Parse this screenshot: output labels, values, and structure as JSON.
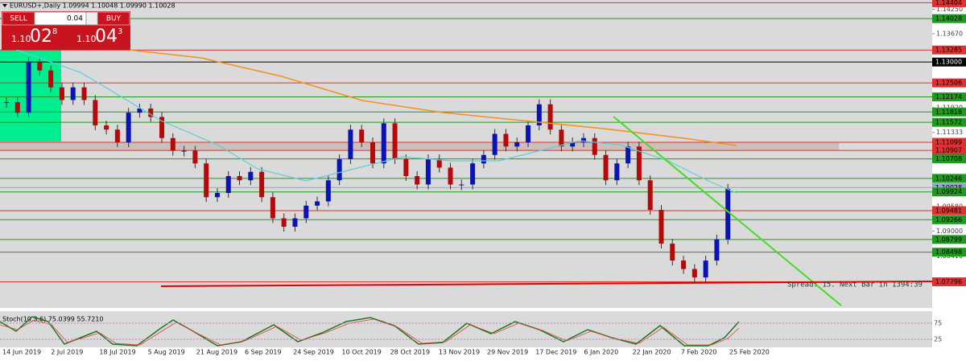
{
  "header": {
    "symbol_info": "EURUSD+,Daily 1.09994 1.10048 1.09990 1.10028"
  },
  "trade_panel": {
    "sell": "SELL",
    "lot": "0.04",
    "buy": "BUY",
    "sell_price": {
      "big": "1.10",
      "main": "02",
      "small": "8"
    },
    "buy_price": {
      "big": "1.10",
      "main": "04",
      "small": "3"
    }
  },
  "chart_data": {
    "type": "candlestick",
    "ylim": [
      1.07235,
      1.14469
    ],
    "yticks": [
      {
        "value": 1.1425,
        "label": "1.14250"
      },
      {
        "value": 1.1367,
        "label": "1.13670"
      },
      {
        "value": 1.1192,
        "label": "1.11920"
      },
      1.11333,
      {
        "value": 1.0958,
        "label": "1.09580"
      },
      {
        "value": 1.09,
        "label": "1.09000"
      },
      {
        "value": 1.0841,
        "label": "1.08410"
      }
    ],
    "levels": [
      {
        "value": 1.14404,
        "color": "#e03030"
      },
      {
        "value": 1.14028,
        "color": "#1f9a1f"
      },
      {
        "value": 1.13285,
        "color": "#e03030"
      },
      {
        "value": 1.13,
        "label": "1.13000",
        "color": "#000000"
      },
      {
        "value": 1.12506,
        "color": "#e03030"
      },
      {
        "value": 1.12174,
        "color": "#1f9a1f"
      },
      {
        "value": 1.11818,
        "color": "#1f9a1f"
      },
      {
        "value": 1.11572,
        "color": "#1f9a1f"
      },
      {
        "value": 1.11099,
        "color": "#e03030"
      },
      {
        "value": 1.10907,
        "color": "#e03030"
      },
      {
        "value": 1.10708,
        "color": "#1f9a1f"
      },
      {
        "value": 1.10246,
        "color": "#1f9a1f"
      },
      {
        "value": 1.10028,
        "color": "#8fa8c8"
      },
      {
        "value": 1.09924,
        "color": "#1f9a1f"
      },
      {
        "value": 1.09481,
        "color": "#e03030"
      },
      {
        "value": 1.09266,
        "color": "#1f9a1f"
      },
      {
        "value": 1.08799,
        "color": "#1f9a1f"
      },
      {
        "value": 1.08498,
        "color": "#1f9a1f"
      },
      {
        "value": 1.07796,
        "color": "#e03030"
      }
    ],
    "closes": [
      1.1205,
      1.118,
      1.13,
      1.128,
      1.124,
      1.121,
      1.124,
      1.121,
      1.115,
      1.114,
      1.111,
      1.118,
      1.119,
      1.117,
      1.112,
      1.109,
      1.109,
      1.106,
      1.098,
      1.099,
      1.103,
      1.102,
      1.104,
      1.098,
      1.093,
      1.091,
      1.093,
      1.096,
      1.097,
      1.102,
      1.107,
      1.114,
      1.111,
      1.106,
      1.1155,
      1.107,
      1.103,
      1.101,
      1.107,
      1.105,
      1.101,
      1.101,
      1.106,
      1.108,
      1.113,
      1.11,
      1.111,
      1.115,
      1.12,
      1.114,
      1.11,
      1.111,
      1.112,
      1.108,
      1.102,
      1.106,
      1.11,
      1.102,
      1.095,
      1.087,
      1.083,
      1.081,
      1.079,
      1.083,
      1.088,
      1.1
    ],
    "dates": [
      "14 Jun 2019",
      "2 Jul 2019",
      "18 Jul 2019",
      "5 Aug 2019",
      "21 Aug 2019",
      "6 Sep 2019",
      "24 Sep 2019",
      "10 Oct 2019",
      "28 Oct 2019",
      "13 Nov 2019",
      "29 Nov 2019",
      "17 Dec 2019",
      "6 Jan 2020",
      "22 Jan 2020",
      "7 Feb 2020",
      "25 Feb 2020"
    ],
    "spread_text": "Spread: 15. Next Bar in 1394:39",
    "indicator": {
      "label": "Stoch(10,3,6) 75.0399 55.7210",
      "levels": [
        75,
        25
      ]
    }
  }
}
